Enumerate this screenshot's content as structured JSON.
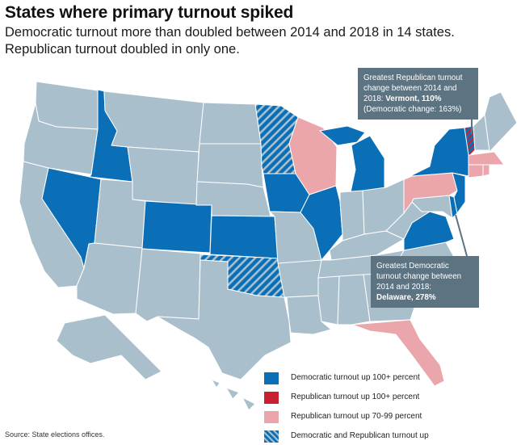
{
  "title": "States where primary turnout spiked",
  "subtitle": {
    "line1": "Democratic turnout more than doubled between 2014 and 2018 in 14 states.",
    "line2": "Republican turnout doubled in only one."
  },
  "colors": {
    "democratic": "#0a6fb7",
    "republican": "#c8202f",
    "republican_70_99": "#eaa6ab",
    "base": "#a9bfcc",
    "border": "#ffffff",
    "callout_bg": "#5c7382"
  },
  "callouts": {
    "republican": {
      "line1": "Greatest Republican turnout",
      "line2": "change between 2014 and",
      "line3_prefix": "2018: ",
      "line3_bold": "Vermont, 110%",
      "line4": "(Democratic change: 163%)"
    },
    "democratic": {
      "line1": "Greatest Democratic",
      "line2": "turnout change between",
      "line3": "2014 and 2018:",
      "line4_bold": "Delaware, 278%"
    }
  },
  "legend": [
    {
      "category": "democratic",
      "label": "Democratic turnout up 100+ percent"
    },
    {
      "category": "republican",
      "label": "Republican turnout up 100+ percent"
    },
    {
      "category": "republican_70_99",
      "label": "Republican turnout up 70-99 percent"
    },
    {
      "category": "both",
      "label": "Democratic and Republican turnout up"
    }
  ],
  "states": {
    "WA": "none",
    "OR": "none",
    "CA": "none",
    "ID": "democratic",
    "NV": "democratic",
    "MT": "none",
    "WY": "none",
    "UT": "none",
    "AZ": "none",
    "CO": "democratic",
    "NM": "none",
    "ND": "none",
    "SD": "none",
    "NE": "none",
    "KS": "democratic",
    "OK": "both",
    "TX": "none",
    "MN": "both",
    "IA": "democratic",
    "MO": "none",
    "AR": "none",
    "LA": "none",
    "WI": "republican_70_99",
    "IL": "democratic",
    "MI": "democratic",
    "IN": "none",
    "OH": "none",
    "KY": "none",
    "TN": "none",
    "MS": "none",
    "AL": "none",
    "GA": "none",
    "FL": "republican_70_99",
    "SC": "none",
    "NC": "none",
    "VA": "democratic",
    "WV": "none",
    "PA": "republican_70_99",
    "NY": "democratic",
    "VT": "both",
    "NH": "none",
    "ME": "none",
    "MA": "republican_70_99",
    "CT": "republican_70_99",
    "RI": "republican_70_99",
    "NJ": "democratic",
    "DE": "democratic",
    "MD": "none",
    "AK": "none",
    "HI": "none"
  },
  "source": "Source: State elections offices."
}
